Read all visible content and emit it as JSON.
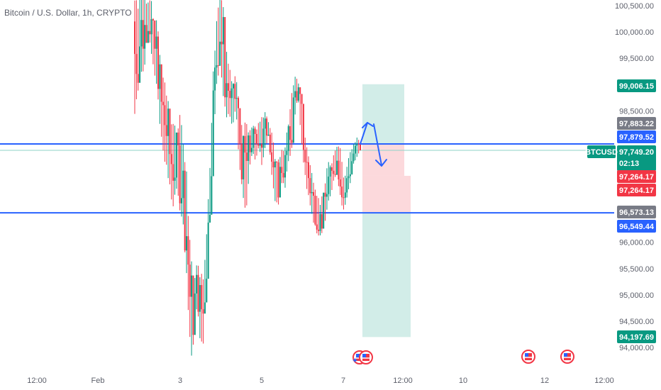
{
  "header": {
    "title": "Bitcoin / U.S. Dollar, 1h, CRYPTO"
  },
  "colors": {
    "up": "#089981",
    "down": "#f23645",
    "hline": "#2962ff",
    "profit_zone": "#d2ede8",
    "loss_zone": "#fcd9dc",
    "arrow": "#2962ff"
  },
  "chart_data": {
    "type": "candlestick",
    "symbol": "BTCUSD",
    "interval": "1h",
    "ylim": [
      93900,
      100600
    ],
    "x_ticks": [
      "12:00",
      "Feb",
      "3",
      "5",
      "7",
      "12:00",
      "10",
      "12",
      "12:00"
    ],
    "y_ticks": [
      "100,500.00",
      "100,000.00",
      "99,500.00",
      "98,500.00",
      "96,000.00",
      "95,500.00",
      "95,000.00",
      "94,500.00",
      "94,000.00"
    ],
    "y_tick_values": [
      100500,
      100000,
      99500,
      98500,
      96000,
      95500,
      95000,
      94500,
      94000
    ],
    "horizontal_lines": [
      97870,
      96560
    ],
    "price_tags": [
      {
        "label": "99,006.15",
        "value": 99006.15,
        "color": "#089981"
      },
      {
        "label": "97,883.22",
        "value": 97883.22,
        "color": "#787b86"
      },
      {
        "label": "97,879.52",
        "value": 97879.52,
        "color": "#2962ff"
      },
      {
        "label": "97,749.20",
        "sub": "02:13",
        "value": 97749.2,
        "color": "#089981",
        "symbol": "BTCUSD"
      },
      {
        "label": "97,264.17",
        "value": 97264.17,
        "color": "#f23645",
        "slot": 0
      },
      {
        "label": "97,264.17",
        "value": 97264.17,
        "color": "#f23645",
        "slot": 1
      },
      {
        "label": "96,573.13",
        "value": 96573.13,
        "color": "#787b86"
      },
      {
        "label": "96,549.44",
        "value": 96549.44,
        "color": "#2962ff"
      },
      {
        "label": "94,197.69",
        "value": 94197.69,
        "color": "#089981"
      }
    ],
    "position": {
      "entry": 96573.13,
      "target_high": 99006.15,
      "stop": 97264.17,
      "target_low": 94197.69
    },
    "candle_path": [
      [
        98400,
        100800
      ],
      [
        98700,
        100700
      ],
      [
        99100,
        100900
      ],
      [
        99300,
        100800
      ],
      [
        99900,
        100600
      ],
      [
        99600,
        100700
      ],
      [
        99200,
        100100
      ],
      [
        98800,
        100400
      ],
      [
        97900,
        99300
      ],
      [
        97600,
        99100
      ],
      [
        97200,
        98900
      ],
      [
        96800,
        98300
      ],
      [
        96600,
        98500
      ],
      [
        96900,
        98200
      ],
      [
        96400,
        98600
      ],
      [
        96000,
        97800
      ],
      [
        94900,
        97300
      ],
      [
        93800,
        95900
      ],
      [
        93900,
        95400
      ],
      [
        94800,
        95600
      ],
      [
        94100,
        95500
      ],
      [
        94000,
        95300
      ],
      [
        95100,
        96200
      ],
      [
        96300,
        97500
      ],
      [
        97900,
        99300
      ],
      [
        98800,
        100200
      ],
      [
        99400,
        100700
      ],
      [
        98700,
        100700
      ],
      [
        98200,
        99900
      ],
      [
        98300,
        99400
      ],
      [
        98100,
        99100
      ],
      [
        98500,
        99200
      ],
      [
        97300,
        98800
      ],
      [
        96900,
        98100
      ],
      [
        96500,
        98400
      ],
      [
        97300,
        98100
      ],
      [
        97700,
        98300
      ],
      [
        97500,
        98200
      ],
      [
        97800,
        98300
      ],
      [
        97400,
        98400
      ],
      [
        97800,
        98500
      ],
      [
        98000,
        98300
      ],
      [
        97100,
        98100
      ],
      [
        96700,
        97700
      ],
      [
        96700,
        97600
      ],
      [
        97100,
        97800
      ],
      [
        97000,
        97900
      ],
      [
        97500,
        98300
      ],
      [
        97600,
        98900
      ],
      [
        98400,
        99200
      ],
      [
        98700,
        99100
      ],
      [
        97900,
        98900
      ],
      [
        97200,
        98200
      ],
      [
        96900,
        97700
      ],
      [
        96500,
        97400
      ],
      [
        96300,
        97100
      ],
      [
        96100,
        96900
      ],
      [
        96000,
        96800
      ],
      [
        96300,
        97100
      ],
      [
        96700,
        97600
      ],
      [
        96900,
        97500
      ],
      [
        97200,
        97700
      ],
      [
        97200,
        97900
      ],
      [
        96800,
        97800
      ],
      [
        96500,
        97200
      ],
      [
        96800,
        97500
      ],
      [
        97100,
        97800
      ],
      [
        97500,
        97900
      ],
      [
        97600,
        98000
      ],
      [
        97750,
        97900
      ]
    ]
  }
}
